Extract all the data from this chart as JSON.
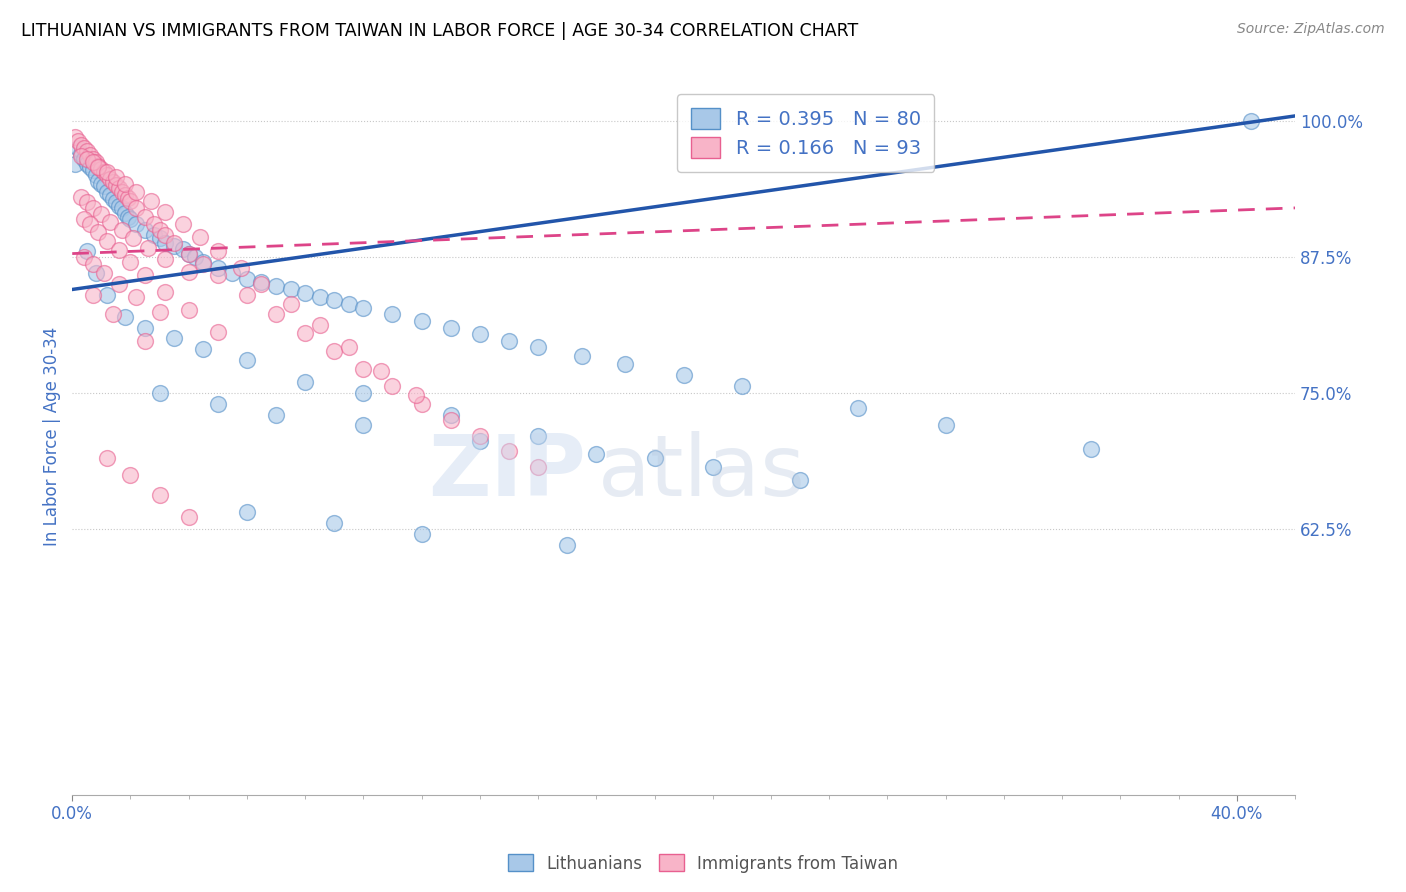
{
  "title": "LITHUANIAN VS IMMIGRANTS FROM TAIWAN IN LABOR FORCE | AGE 30-34 CORRELATION CHART",
  "source": "Source: ZipAtlas.com",
  "ylabel": "In Labor Force | Age 30-34",
  "xlim": [
    0.0,
    0.42
  ],
  "ylim": [
    0.38,
    1.04
  ],
  "yticks": [
    0.625,
    0.75,
    0.875,
    1.0
  ],
  "ytick_labels": [
    "62.5%",
    "75.0%",
    "87.5%",
    "100.0%"
  ],
  "xtick_positions": [
    0.0,
    0.4
  ],
  "xtick_labels": [
    "0.0%",
    "40.0%"
  ],
  "blue_color": "#a8c8e8",
  "pink_color": "#f8b4c8",
  "blue_edge_color": "#5590c8",
  "pink_edge_color": "#e86090",
  "blue_line_color": "#2255aa",
  "pink_line_color": "#dd4488",
  "legend_text_color": "#4472c4",
  "tick_color": "#4472c4",
  "grid_color": "#c8c8c8",
  "blue_R": "R = 0.395",
  "blue_N": "N = 80",
  "pink_R": "R = 0.166",
  "pink_N": "N = 93",
  "blue_line_intercept": 0.845,
  "blue_line_slope": 0.38,
  "pink_line_intercept": 0.878,
  "pink_line_slope": 0.1,
  "blue_x": [
    0.001,
    0.002,
    0.003,
    0.004,
    0.005,
    0.006,
    0.007,
    0.008,
    0.009,
    0.01,
    0.011,
    0.012,
    0.013,
    0.014,
    0.015,
    0.016,
    0.017,
    0.018,
    0.019,
    0.02,
    0.022,
    0.025,
    0.028,
    0.03,
    0.032,
    0.035,
    0.038,
    0.04,
    0.042,
    0.045,
    0.05,
    0.055,
    0.06,
    0.065,
    0.07,
    0.075,
    0.08,
    0.085,
    0.09,
    0.095,
    0.1,
    0.11,
    0.12,
    0.13,
    0.14,
    0.15,
    0.16,
    0.175,
    0.19,
    0.21,
    0.23,
    0.27,
    0.3,
    0.35,
    0.005,
    0.008,
    0.012,
    0.018,
    0.025,
    0.035,
    0.045,
    0.06,
    0.08,
    0.1,
    0.13,
    0.16,
    0.2,
    0.25,
    0.03,
    0.05,
    0.07,
    0.1,
    0.14,
    0.18,
    0.22,
    0.06,
    0.09,
    0.12,
    0.17,
    0.405
  ],
  "blue_y": [
    0.96,
    0.975,
    0.97,
    0.965,
    0.96,
    0.958,
    0.955,
    0.95,
    0.945,
    0.942,
    0.94,
    0.935,
    0.932,
    0.928,
    0.925,
    0.922,
    0.92,
    0.915,
    0.912,
    0.91,
    0.905,
    0.9,
    0.895,
    0.892,
    0.888,
    0.885,
    0.882,
    0.878,
    0.875,
    0.87,
    0.865,
    0.86,
    0.855,
    0.852,
    0.848,
    0.845,
    0.842,
    0.838,
    0.835,
    0.832,
    0.828,
    0.822,
    0.816,
    0.81,
    0.804,
    0.798,
    0.792,
    0.784,
    0.776,
    0.766,
    0.756,
    0.736,
    0.72,
    0.698,
    0.88,
    0.86,
    0.84,
    0.82,
    0.81,
    0.8,
    0.79,
    0.78,
    0.76,
    0.75,
    0.73,
    0.71,
    0.69,
    0.67,
    0.75,
    0.74,
    0.73,
    0.72,
    0.706,
    0.694,
    0.682,
    0.64,
    0.63,
    0.62,
    0.61,
    1.0
  ],
  "pink_x": [
    0.001,
    0.002,
    0.003,
    0.004,
    0.005,
    0.006,
    0.007,
    0.008,
    0.009,
    0.01,
    0.011,
    0.012,
    0.013,
    0.014,
    0.015,
    0.016,
    0.017,
    0.018,
    0.019,
    0.02,
    0.022,
    0.025,
    0.028,
    0.03,
    0.032,
    0.035,
    0.04,
    0.045,
    0.05,
    0.06,
    0.07,
    0.08,
    0.09,
    0.1,
    0.11,
    0.12,
    0.13,
    0.14,
    0.15,
    0.16,
    0.003,
    0.005,
    0.007,
    0.009,
    0.012,
    0.015,
    0.018,
    0.022,
    0.027,
    0.032,
    0.038,
    0.044,
    0.05,
    0.058,
    0.065,
    0.075,
    0.085,
    0.095,
    0.106,
    0.118,
    0.003,
    0.005,
    0.007,
    0.01,
    0.013,
    0.017,
    0.021,
    0.026,
    0.032,
    0.04,
    0.004,
    0.006,
    0.009,
    0.012,
    0.016,
    0.02,
    0.025,
    0.032,
    0.04,
    0.05,
    0.004,
    0.007,
    0.011,
    0.016,
    0.022,
    0.03,
    0.007,
    0.014,
    0.025,
    0.012,
    0.02,
    0.03,
    0.04
  ],
  "pink_y": [
    0.985,
    0.982,
    0.978,
    0.975,
    0.972,
    0.969,
    0.965,
    0.962,
    0.959,
    0.956,
    0.953,
    0.95,
    0.947,
    0.944,
    0.941,
    0.938,
    0.935,
    0.932,
    0.929,
    0.926,
    0.92,
    0.912,
    0.905,
    0.9,
    0.895,
    0.888,
    0.878,
    0.868,
    0.858,
    0.84,
    0.822,
    0.805,
    0.788,
    0.772,
    0.756,
    0.74,
    0.725,
    0.71,
    0.696,
    0.682,
    0.968,
    0.965,
    0.962,
    0.958,
    0.953,
    0.948,
    0.942,
    0.935,
    0.926,
    0.916,
    0.905,
    0.893,
    0.88,
    0.865,
    0.85,
    0.832,
    0.812,
    0.792,
    0.77,
    0.748,
    0.93,
    0.925,
    0.92,
    0.914,
    0.907,
    0.9,
    0.892,
    0.883,
    0.873,
    0.861,
    0.91,
    0.905,
    0.898,
    0.89,
    0.881,
    0.87,
    0.858,
    0.843,
    0.826,
    0.806,
    0.875,
    0.868,
    0.86,
    0.85,
    0.838,
    0.824,
    0.84,
    0.822,
    0.798,
    0.69,
    0.674,
    0.656,
    0.636
  ]
}
